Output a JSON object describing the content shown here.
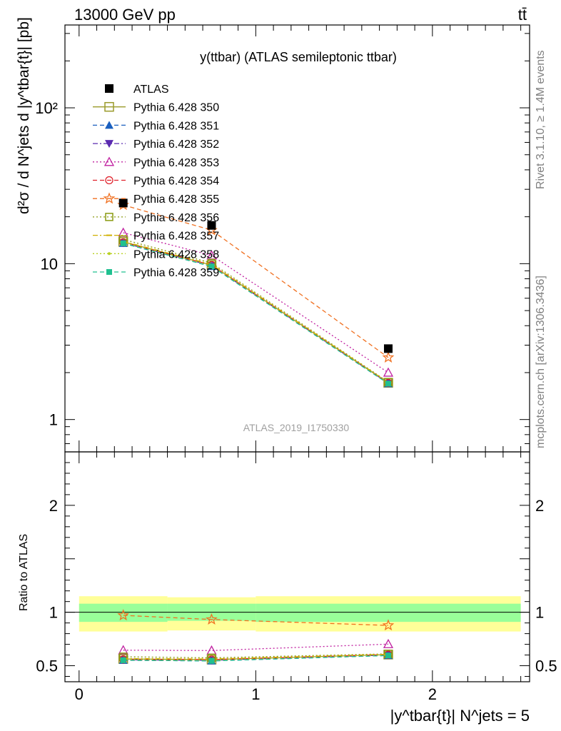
{
  "header": {
    "left": "13000 GeV pp",
    "right": "tt̄"
  },
  "side_labels": {
    "rivet": "Rivet 3.1.10, ≥ 1.4M events",
    "mcplots": "mcplots.cern.ch [arXiv:1306.3436]"
  },
  "chart_data": [
    {
      "type": "line",
      "title": "y(ttbar) (ATLAS semileptonic ttbar)",
      "ylabel": "d²σ / d N^jets d |y^tbar{t}| [pb]",
      "xlabel": "",
      "watermark": "ATLAS_2019_I1750330",
      "xlim": [
        -0.08,
        2.55
      ],
      "ylim": [
        0.62,
        340
      ],
      "yscale": "log",
      "yticks": [
        {
          "v": 1,
          "label": "1"
        },
        {
          "v": 10,
          "label": "10"
        },
        {
          "v": 100,
          "label": "10²"
        }
      ],
      "legend_position": "top-left",
      "x": [
        0.25,
        0.75,
        1.75
      ],
      "data": {
        "name": "ATLAS",
        "values": [
          24.5,
          17.6,
          2.85
        ],
        "color": "#000000",
        "marker": "square-filled"
      },
      "series": [
        {
          "name": "Pythia 6.428 350",
          "values": [
            13.8,
            9.8,
            1.72
          ],
          "color": "#9a9a2a",
          "marker": "square-open",
          "dash": "solid"
        },
        {
          "name": "Pythia 6.428 351",
          "values": [
            13.5,
            9.6,
            1.7
          ],
          "color": "#1a5fbf",
          "marker": "triangle-up-filled",
          "dash": "dashed"
        },
        {
          "name": "Pythia 6.428 352",
          "values": [
            13.6,
            9.7,
            1.71
          ],
          "color": "#5a2ab0",
          "marker": "triangle-down-filled",
          "dash": "dashdot"
        },
        {
          "name": "Pythia 6.428 353",
          "values": [
            15.8,
            11.3,
            2.0
          ],
          "color": "#c020a0",
          "marker": "triangle-up-open",
          "dash": "dotted"
        },
        {
          "name": "Pythia 6.428 354",
          "values": [
            13.7,
            9.8,
            1.72
          ],
          "color": "#e0202a",
          "marker": "circle-open",
          "dash": "dashed"
        },
        {
          "name": "Pythia 6.428 355",
          "values": [
            23.8,
            16.4,
            2.5
          ],
          "color": "#f07020",
          "marker": "star-open",
          "dash": "dashed"
        },
        {
          "name": "Pythia 6.428 356",
          "values": [
            14.3,
            10.1,
            1.74
          ],
          "color": "#8a9a10",
          "marker": "square-open-small",
          "dash": "dotted"
        },
        {
          "name": "Pythia 6.428 357",
          "values": [
            13.9,
            9.9,
            1.73
          ],
          "color": "#d0b000",
          "marker": "dash",
          "dash": "dashdot"
        },
        {
          "name": "Pythia 6.428 358",
          "values": [
            13.7,
            9.7,
            1.71
          ],
          "color": "#b8d020",
          "marker": "dot",
          "dash": "dotted"
        },
        {
          "name": "Pythia 6.428 359",
          "values": [
            13.5,
            9.6,
            1.7
          ],
          "color": "#20c090",
          "marker": "square-filled-small",
          "dash": "dashed"
        }
      ]
    },
    {
      "type": "line",
      "title": "",
      "ylabel": "Ratio to ATLAS",
      "xlabel": "|y^tbar{t}| N^jets = 5",
      "xlim": [
        -0.08,
        2.55
      ],
      "ylim": [
        0.35,
        2.5
      ],
      "xticks": [
        {
          "v": 0,
          "label": "0"
        },
        {
          "v": 1,
          "label": "1"
        },
        {
          "v": 2,
          "label": "2"
        }
      ],
      "yticks": [
        {
          "v": 0.5,
          "label": "0.5"
        },
        {
          "v": 1,
          "label": "1"
        },
        {
          "v": 2,
          "label": "2"
        }
      ],
      "bands": [
        {
          "name": "total",
          "color": "#ffff99",
          "segments": [
            {
              "x0": 0,
              "x1": 0.5,
              "lo": 0.82,
              "hi": 1.15
            },
            {
              "x0": 0.5,
              "x1": 1.0,
              "lo": 0.83,
              "hi": 1.14
            },
            {
              "x0": 1.0,
              "x1": 2.5,
              "lo": 0.82,
              "hi": 1.15
            }
          ]
        },
        {
          "name": "stat",
          "color": "#99ff99",
          "segments": [
            {
              "x0": 0,
              "x1": 0.5,
              "lo": 0.91,
              "hi": 1.08
            },
            {
              "x0": 0.5,
              "x1": 1.0,
              "lo": 0.92,
              "hi": 1.08
            },
            {
              "x0": 1.0,
              "x1": 2.5,
              "lo": 0.91,
              "hi": 1.08
            }
          ]
        }
      ],
      "x": [
        0.25,
        0.75,
        1.75
      ],
      "series_ratios": [
        [
          0.563,
          0.557,
          0.604
        ],
        [
          0.551,
          0.545,
          0.596
        ],
        [
          0.555,
          0.551,
          0.6
        ],
        [
          0.645,
          0.642,
          0.702
        ],
        [
          0.559,
          0.557,
          0.604
        ],
        [
          0.971,
          0.932,
          0.877
        ],
        [
          0.584,
          0.574,
          0.611
        ],
        [
          0.567,
          0.563,
          0.607
        ],
        [
          0.559,
          0.551,
          0.6
        ],
        [
          0.551,
          0.545,
          0.596
        ]
      ]
    }
  ]
}
